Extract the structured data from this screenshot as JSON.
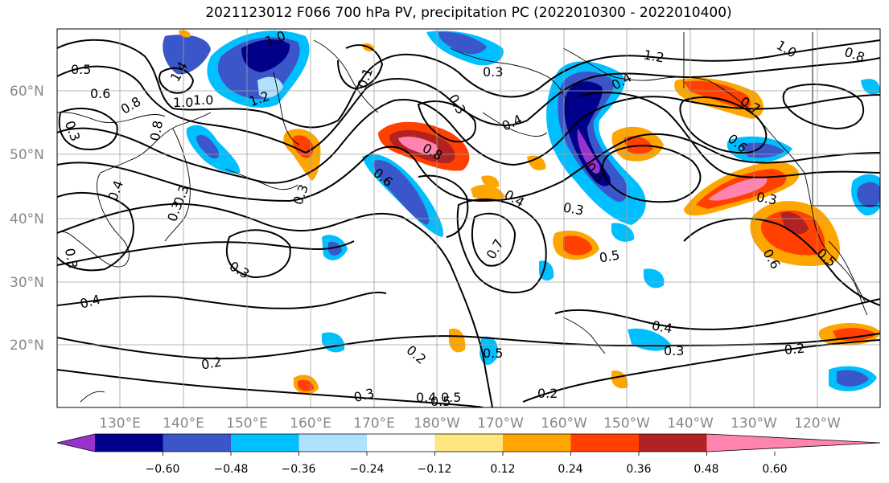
{
  "title": "2021123012 F066 700 hPa PV, precipitation PC (2022010300 - 2022010400)",
  "latitude_labels": [
    "60°N",
    "50°N",
    "40°N",
    "30°N",
    "20°N"
  ],
  "longitude_labels": [
    "130°E",
    "140°E",
    "150°E",
    "160°E",
    "170°E",
    "180°W",
    "170°W",
    "160°W",
    "150°W",
    "140°W",
    "130°W",
    "120°W"
  ],
  "contour_labels": [
    "0.5",
    "0.6",
    "0.8",
    "1.0",
    "1.4",
    "1.0",
    "1.2",
    "0.1",
    "0.3",
    "0.3",
    "0.3",
    "0.4",
    "0.4",
    "0.3",
    "0.6",
    "0.8",
    "1.2",
    "1.0",
    "0.7",
    "0.4",
    "0.3",
    "0.3",
    "0.5",
    "0.7",
    "0.5",
    "0.4",
    "0.2",
    "0.2",
    "0.3",
    "0.3",
    "0.2",
    "0.2",
    "0.4",
    "0.5",
    "0.3",
    "0.3",
    "0.4",
    "0.8",
    "0.3",
    "0.6",
    "0.5",
    "0.3",
    "1.0",
    "0.8",
    "0.6",
    "0.4",
    "0.5",
    "0.6"
  ],
  "colorbar": {
    "tick_labels": [
      "−0.60",
      "−0.48",
      "−0.36",
      "−0.24",
      "−0.12",
      "0.12",
      "0.24",
      "0.36",
      "0.48",
      "0.60"
    ],
    "colors": [
      "#9932cc",
      "#00008b",
      "#3a56c8",
      "#00bfff",
      "#b0e2ff",
      "#ffffff",
      "#ffe680",
      "#ffa500",
      "#ff4000",
      "#b22222",
      "#ff85b0"
    ]
  },
  "colors": {
    "contour": "#000000",
    "grid": "#a0a0a0",
    "coast": "#000000"
  }
}
